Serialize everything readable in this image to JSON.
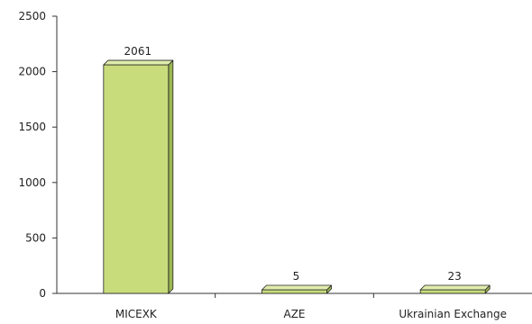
{
  "chart_data": {
    "type": "bar",
    "categories": [
      "MICEXK",
      "AZE",
      "Ukrainian Exchange"
    ],
    "values": [
      2061,
      5,
      23
    ],
    "data_labels": [
      "2061",
      "5",
      "23"
    ],
    "ylim": [
      0,
      2500
    ],
    "yticks": [
      0,
      500,
      1000,
      1500,
      2000,
      2500
    ],
    "ytick_labels": [
      "0",
      "500",
      "1000",
      "1500",
      "2000",
      "2500"
    ],
    "grid": false,
    "legend": "none",
    "title": "",
    "xlabel": "",
    "ylabel": "",
    "style": "3d",
    "colors": {
      "bar_front": "#c8dc7c",
      "bar_top": "#e0ecac",
      "bar_side": "#9cb652",
      "bar_outline": "#222222",
      "axis": "#333333"
    }
  }
}
